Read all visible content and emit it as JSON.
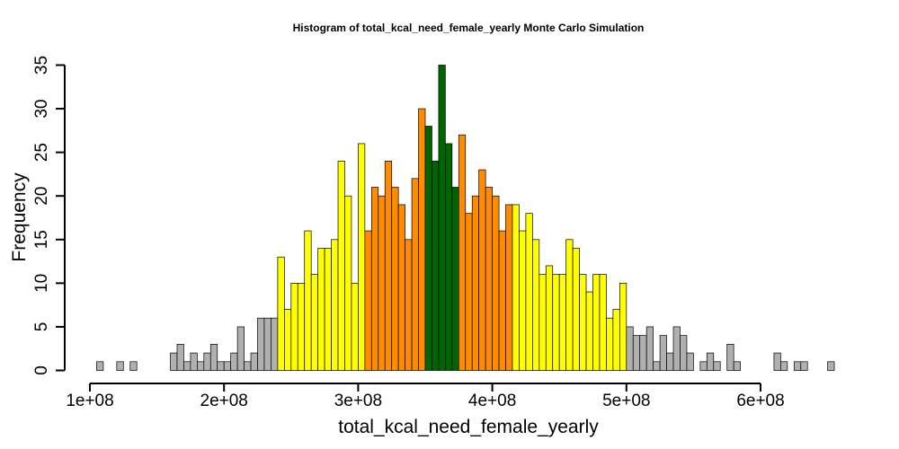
{
  "chart_data": {
    "type": "bar",
    "title": "Histogram of  total_kcal_need_female_yearly  Monte Carlo Simulation",
    "xlabel": "total_kcal_need_female_yearly",
    "ylabel": "Frequency",
    "xlim": [
      100000000,
      660000000
    ],
    "ylim": [
      0,
      35
    ],
    "bin_start": 105000000,
    "bin_width": 5000000,
    "x_ticks": [
      100000000,
      200000000,
      300000000,
      400000000,
      500000000,
      600000000
    ],
    "x_tick_labels": [
      "1e+08",
      "2e+08",
      "3e+08",
      "4e+08",
      "5e+08",
      "6e+08"
    ],
    "y_ticks": [
      0,
      5,
      10,
      15,
      20,
      25,
      30,
      35
    ],
    "y_tick_labels": [
      "0",
      "5",
      "10",
      "15",
      "20",
      "25",
      "30",
      "35"
    ],
    "values": [
      1,
      0,
      0,
      1,
      0,
      1,
      0,
      0,
      0,
      0,
      0,
      2,
      3,
      1,
      2,
      1,
      2,
      3,
      1,
      1,
      2,
      5,
      1,
      2,
      6,
      6,
      6,
      13,
      7,
      10,
      10,
      16,
      11,
      14,
      14,
      15,
      24,
      20,
      10,
      26,
      16,
      21,
      20,
      24,
      21,
      19,
      15,
      22,
      30,
      28,
      24,
      35,
      26,
      21,
      27,
      18,
      20,
      23,
      21,
      20,
      16,
      19,
      19,
      16,
      18,
      15,
      11,
      12,
      11,
      11,
      15,
      14,
      11,
      9,
      11,
      11,
      6,
      7,
      10,
      5,
      4,
      4,
      5,
      1,
      4,
      2,
      5,
      4,
      2,
      0,
      1,
      2,
      1,
      0,
      3,
      1,
      0,
      0,
      0,
      0,
      0,
      2,
      1,
      0,
      1,
      1,
      0,
      0,
      0,
      1
    ],
    "colors": [
      "#b0b0b0",
      "#b0b0b0",
      "#b0b0b0",
      "#b0b0b0",
      "#b0b0b0",
      "#b0b0b0",
      "#b0b0b0",
      "#b0b0b0",
      "#b0b0b0",
      "#b0b0b0",
      "#b0b0b0",
      "#b0b0b0",
      "#b0b0b0",
      "#b0b0b0",
      "#b0b0b0",
      "#b0b0b0",
      "#b0b0b0",
      "#b0b0b0",
      "#b0b0b0",
      "#b0b0b0",
      "#b0b0b0",
      "#b0b0b0",
      "#b0b0b0",
      "#b0b0b0",
      "#b0b0b0",
      "#b0b0b0",
      "#b0b0b0",
      "#ffff00",
      "#ffff00",
      "#ffff00",
      "#ffff00",
      "#ffff00",
      "#ffff00",
      "#ffff00",
      "#ffff00",
      "#ffff00",
      "#ffff00",
      "#ffff00",
      "#ffff00",
      "#ffff00",
      "#ff8c00",
      "#ff8c00",
      "#ff8c00",
      "#ff8c00",
      "#ff8c00",
      "#ff8c00",
      "#ff8c00",
      "#ff8c00",
      "#ff8c00",
      "#006400",
      "#006400",
      "#006400",
      "#006400",
      "#006400",
      "#ff8c00",
      "#ff8c00",
      "#ff8c00",
      "#ff8c00",
      "#ff8c00",
      "#ff8c00",
      "#ff8c00",
      "#ff8c00",
      "#ffff00",
      "#ffff00",
      "#ffff00",
      "#ffff00",
      "#ffff00",
      "#ffff00",
      "#ffff00",
      "#ffff00",
      "#ffff00",
      "#ffff00",
      "#ffff00",
      "#ffff00",
      "#ffff00",
      "#ffff00",
      "#ffff00",
      "#ffff00",
      "#ffff00",
      "#b0b0b0",
      "#b0b0b0",
      "#b0b0b0",
      "#b0b0b0",
      "#b0b0b0",
      "#b0b0b0",
      "#b0b0b0",
      "#b0b0b0",
      "#b0b0b0",
      "#b0b0b0",
      "#b0b0b0",
      "#b0b0b0",
      "#b0b0b0",
      "#b0b0b0",
      "#b0b0b0",
      "#b0b0b0",
      "#b0b0b0",
      "#b0b0b0",
      "#b0b0b0",
      "#b0b0b0",
      "#b0b0b0",
      "#b0b0b0",
      "#b0b0b0",
      "#b0b0b0",
      "#b0b0b0",
      "#b0b0b0",
      "#b0b0b0",
      "#b0b0b0",
      "#b0b0b0",
      "#b0b0b0",
      "#b0b0b0",
      "#b0b0b0"
    ],
    "grid": false,
    "legend": "none"
  }
}
